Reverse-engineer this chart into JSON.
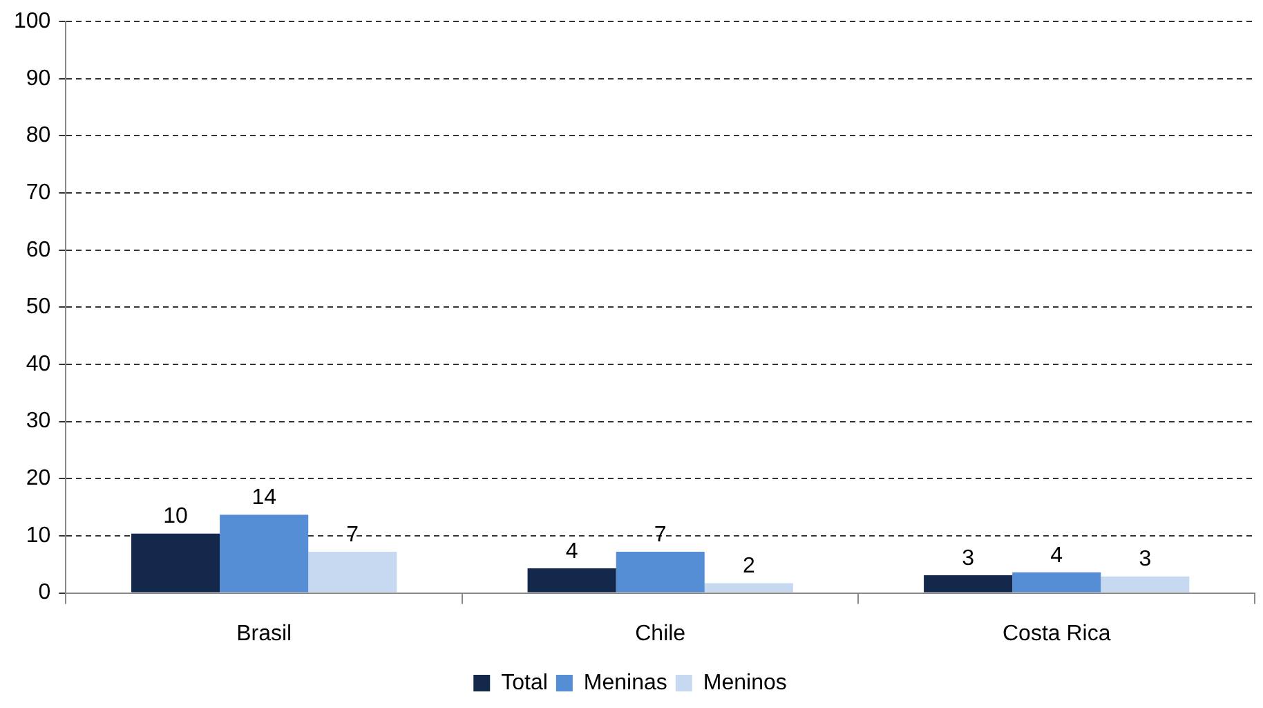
{
  "chart_data": {
    "type": "bar",
    "categories": [
      "Brasil",
      "Chile",
      "Costa Rica"
    ],
    "series": [
      {
        "name": "Total",
        "color": "#13284a",
        "values": [
          10.4,
          4.3,
          3.1
        ],
        "value_labels": [
          "10",
          "4",
          "3"
        ]
      },
      {
        "name": "Meninas",
        "color": "#558ed5",
        "values": [
          13.7,
          7.2,
          3.6
        ],
        "value_labels": [
          "14",
          "7",
          "4"
        ]
      },
      {
        "name": "Meninos",
        "color": "#c6d9f1",
        "values": [
          7.2,
          1.7,
          2.9
        ],
        "value_labels": [
          "7",
          "2",
          "3"
        ]
      }
    ],
    "ylim": [
      0,
      100
    ],
    "yticks": [
      0,
      10,
      20,
      30,
      40,
      50,
      60,
      70,
      80,
      90,
      100
    ],
    "grid": "y",
    "line_style": "dashed",
    "legend": "bottom"
  }
}
